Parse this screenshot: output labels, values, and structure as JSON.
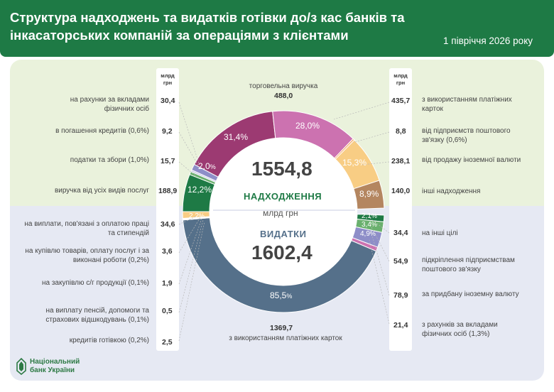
{
  "header": {
    "title": "Структура надходжень та видатків готівки до/з кас банків та інкасаторських компаній за операціями з клієнтами",
    "period": "1 півріччя 2026 року"
  },
  "units": {
    "left": "млрд грн",
    "right": "млрд грн"
  },
  "income": {
    "total": "1554,8",
    "label": "НАДХОДЖЕННЯ",
    "top_label": "торговельна виручка",
    "top_value": "488,0",
    "left_items": [
      {
        "label": "на рахунки за вкладами фізичних осіб",
        "value": "30,4"
      },
      {
        "label": "в погашення кредитів (0,6%)",
        "value": "9,2"
      },
      {
        "label": "податки та збори (1,0%)",
        "value": "15,7"
      },
      {
        "label": "виручка від усіх видів послуг",
        "value": "188,9"
      }
    ],
    "right_items": [
      {
        "label": "з використанням платіжних карток",
        "value": "435,7"
      },
      {
        "label": "від підприємств поштового зв'язку (0,6%)",
        "value": "8,8"
      },
      {
        "label": "від продажу іноземної валюти",
        "value": "238,1"
      },
      {
        "label": "інші надходження",
        "value": "140,0"
      }
    ],
    "percent_labels": [
      "31,4%",
      "28,0%",
      "15,3%",
      "8,9%",
      "12,2%",
      "2,0"
    ]
  },
  "expense": {
    "total": "1602,4",
    "label": "ВИДАТКИ",
    "unit": "млрд грн",
    "bottom_label": "з використанням платіжних карток",
    "bottom_value": "1369,7",
    "left_items": [
      {
        "label": "на виплати, пов'язані з оплатою праці та стипендій",
        "value": "34,6"
      },
      {
        "label": "на купівлю товарів, оплату послуг і за виконані роботи (0,2%)",
        "value": "3,6"
      },
      {
        "label": "на закупівлю с/г продукції (0,1%)",
        "value": "1,9"
      },
      {
        "label": "на виплату пенсій, допомоги та страхових відшкодувань (0,1%)",
        "value": "0,5"
      },
      {
        "label": "кредитів готівкою (0,2%)",
        "value": "2,5"
      }
    ],
    "right_items": [
      {
        "label": "на інші цілі",
        "value": "34,4"
      },
      {
        "label": "підкріплення підприємствам поштового зв'язку",
        "value": "54,9"
      },
      {
        "label": "за придбану іноземну валюту",
        "value": "78,9"
      },
      {
        "label": "з рахунків за вкладами фізичних осіб (1,3%)",
        "value": "21,4"
      }
    ],
    "percent_labels": [
      "85,5",
      "2,2",
      "2,1",
      "3,4",
      "4,9"
    ]
  },
  "logo": {
    "line1": "Національний",
    "line2": "банк України"
  },
  "chart_data": {
    "type": "pie",
    "charts": [
      {
        "name": "НАДХОДЖЕННЯ",
        "total": 1554.8,
        "segments": [
          {
            "label": "торговельна виручка",
            "value": 488.0,
            "percent": 31.4,
            "color": "#9c3a72"
          },
          {
            "label": "з використанням платіжних карток",
            "value": 435.7,
            "percent": 28.0,
            "color": "#cc72b0"
          },
          {
            "label": "від підприємств поштового зв'язку",
            "value": 8.8,
            "percent": 0.6,
            "color": "#f4a96a"
          },
          {
            "label": "від продажу іноземної валюти",
            "value": 238.1,
            "percent": 15.3,
            "color": "#f8cd84"
          },
          {
            "label": "інші надходження",
            "value": 140.0,
            "percent": 8.9,
            "color": "#b48660"
          },
          {
            "label": "на рахунки за вкладами фізичних осіб",
            "value": 30.4,
            "percent": 2.0,
            "color": "#8e8ec8"
          },
          {
            "label": "в погашення кредитів",
            "value": 9.2,
            "percent": 0.6,
            "color": "#cdcde6"
          },
          {
            "label": "податки та збори",
            "value": 15.7,
            "percent": 1.0,
            "color": "#6ab06e"
          },
          {
            "label": "виручка від усіх видів послуг",
            "value": 188.9,
            "percent": 12.2,
            "color": "#1e7a45"
          }
        ]
      },
      {
        "name": "ВИДАТКИ",
        "total": 1602.4,
        "segments": [
          {
            "label": "з використанням платіжних карток",
            "value": 1369.7,
            "percent": 85.5,
            "color": "#55708a"
          },
          {
            "label": "на виплати, пов'язані з оплатою праці та стипендій",
            "value": 34.6,
            "percent": 2.2,
            "color": "#f8cd84"
          },
          {
            "label": "на купівлю товарів, оплату послуг і за виконані роботи",
            "value": 3.6,
            "percent": 0.2,
            "color": "#f4a96a"
          },
          {
            "label": "на закупівлю с/г продукції",
            "value": 1.9,
            "percent": 0.1,
            "color": "#e87a7a"
          },
          {
            "label": "на виплату пенсій, допомоги та страхових відшкодувань",
            "value": 0.5,
            "percent": 0.1,
            "color": "#c89a6a"
          },
          {
            "label": "кредитів готівкою",
            "value": 2.5,
            "percent": 0.2,
            "color": "#cc72b0"
          },
          {
            "label": "на інші цілі",
            "value": 34.4,
            "percent": 2.1,
            "color": "#1e7a45"
          },
          {
            "label": "підкріплення підприємствам поштового зв'язку",
            "value": 54.9,
            "percent": 3.4,
            "color": "#6ab06e"
          },
          {
            "label": "за придбану іноземну валюту",
            "value": 78.9,
            "percent": 4.9,
            "color": "#8e8ec8"
          },
          {
            "label": "з рахунків за вкладами фізичних осіб",
            "value": 21.4,
            "percent": 1.3,
            "color": "#cc72b0"
          }
        ]
      }
    ]
  }
}
